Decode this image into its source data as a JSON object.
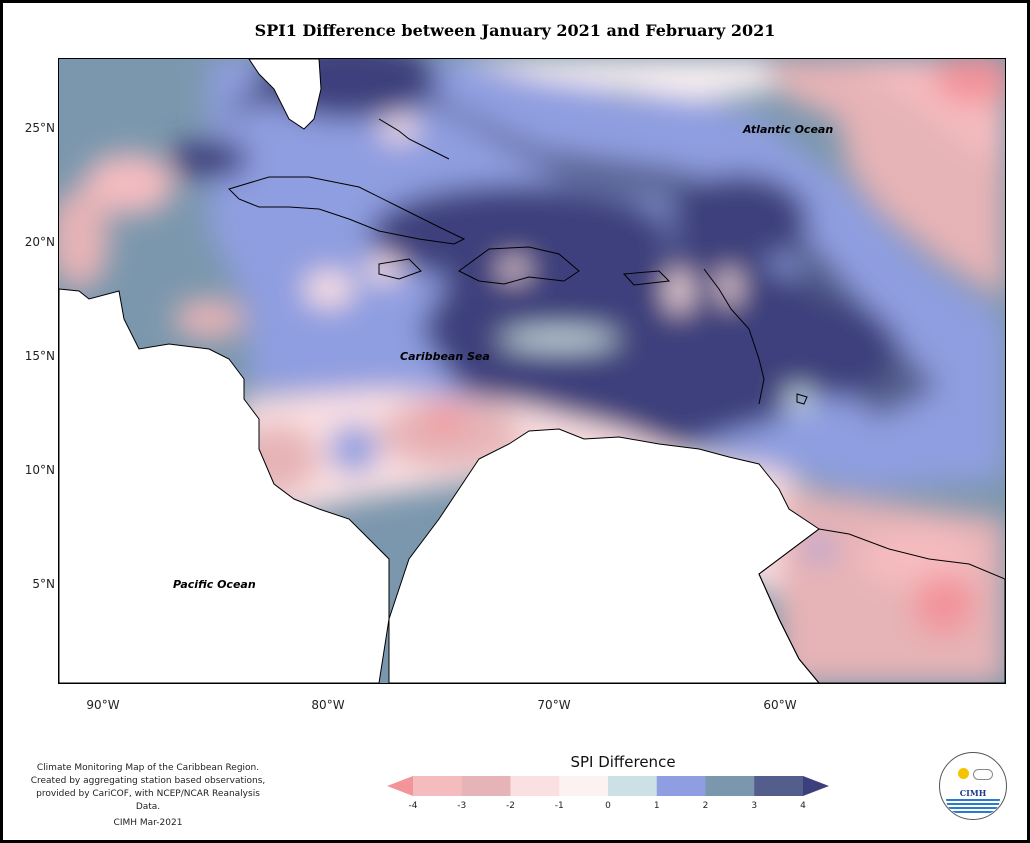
{
  "title": "SPI1 Difference between January 2021 and February 2021",
  "axes": {
    "lat_labels": [
      "25°N",
      "20°N",
      "15°N",
      "10°N",
      "5°N"
    ],
    "lon_labels": [
      "90°W",
      "80°W",
      "70°W",
      "60°W"
    ]
  },
  "places": {
    "atlantic": "Atlantic Ocean",
    "caribbean": "Caribbean Sea",
    "pacific": "Pacific Ocean"
  },
  "credit": {
    "line1": "Climate Monitoring Map of the Caribbean Region.",
    "line2": "Created by aggregating station based observations,",
    "line3": "provided by CariCOF, with NCEP/NCAR Reanalysis Data.",
    "stamp": "CIMH Mar-2021"
  },
  "legend": {
    "title": "SPI Difference",
    "ticks": [
      "-4",
      "-3",
      "-2",
      "-1",
      "0",
      "1",
      "2",
      "3",
      "4"
    ],
    "colors": [
      "#f3939a",
      "#f5bcc0",
      "#e6b3b6",
      "#fbe0e2",
      "#fdf2f2",
      "#cde0e6",
      "#8f9ee0",
      "#7b97ad",
      "#545e8c",
      "#3d3f7c"
    ]
  },
  "logo": {
    "text": "CIMH"
  }
}
